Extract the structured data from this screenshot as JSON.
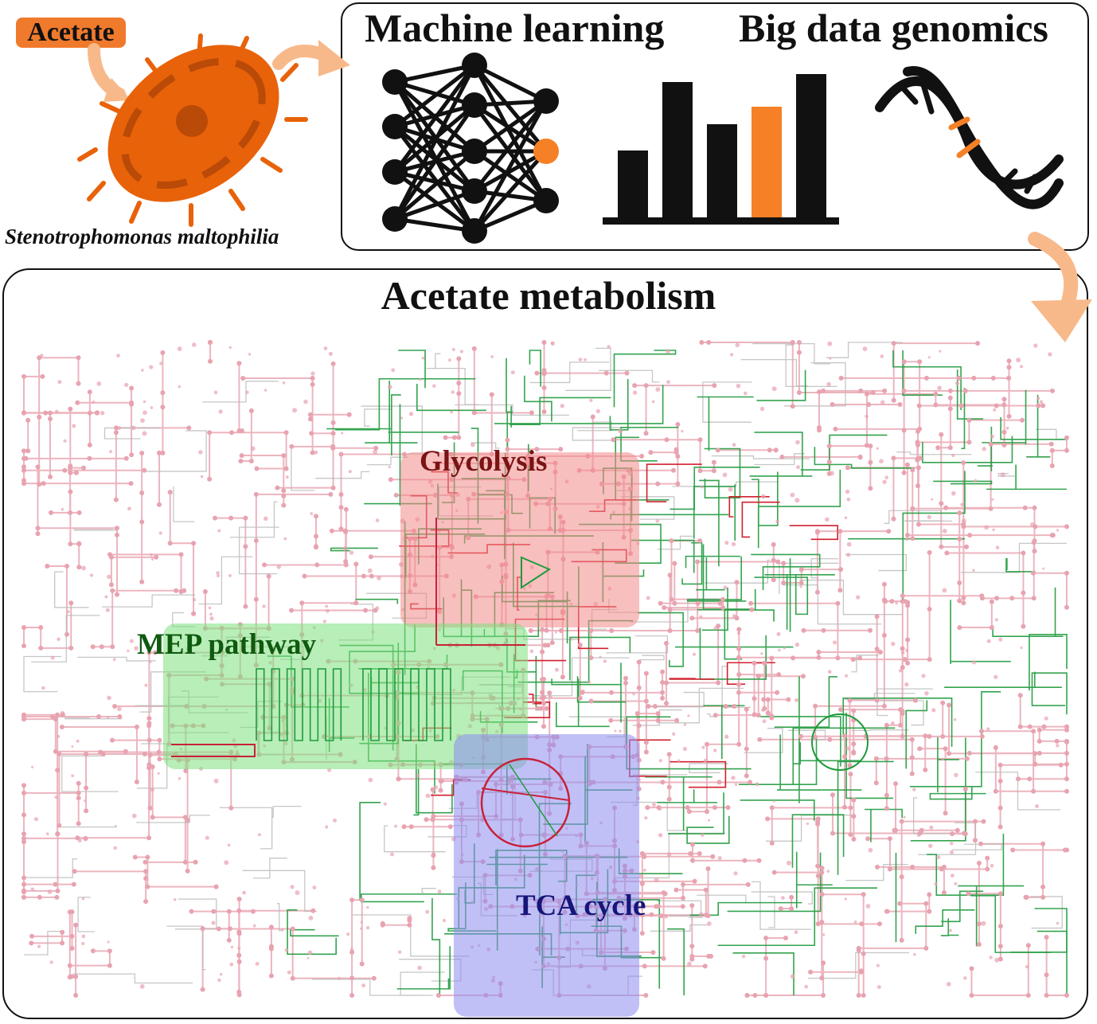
{
  "input": {
    "label": "Acetate",
    "badge_color": "#f07a2c"
  },
  "organism": {
    "name": "Stenotrophomonas maltophilia",
    "color": "#e8620a"
  },
  "methods": {
    "machine_learning": {
      "title": "Machine learning",
      "icon": "neural-network-icon"
    },
    "big_data": {
      "title": "Big data genomics",
      "icons": [
        "bar-chart-icon",
        "dna-helix-icon"
      ]
    }
  },
  "metabolism": {
    "title": "Acetate metabolism",
    "regions": [
      {
        "id": "glycolysis",
        "label": "Glycolysis",
        "label_color": "#7a1414",
        "fill": "#f28a8a"
      },
      {
        "id": "mep",
        "label": "MEP pathway",
        "label_color": "#0f5a0f",
        "fill": "#7ee07e"
      },
      {
        "id": "tca",
        "label": "TCA cycle",
        "label_color": "#16167a",
        "fill": "#8c8cf0"
      }
    ]
  },
  "colors": {
    "accent": "#f58025",
    "arrow": "#f8b98a",
    "network_pink": "#e8a3b0",
    "network_grey": "#b9b9b9",
    "network_green": "#1f9a3c",
    "network_red": "#d0202e"
  }
}
